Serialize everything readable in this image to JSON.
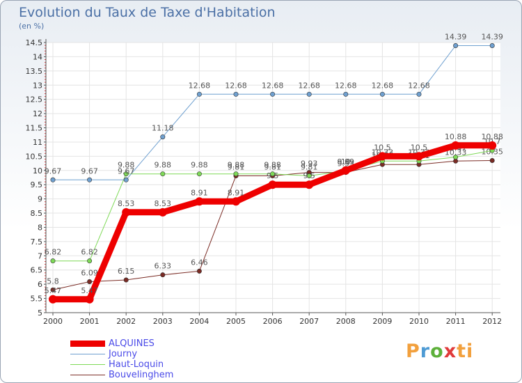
{
  "chart_data": {
    "type": "line",
    "title": "Evolution du Taux de Taxe d'Habitation",
    "subtitle": "(en %)",
    "x": [
      "2000",
      "2001",
      "2002",
      "2003",
      "2004",
      "2005",
      "2006",
      "2007",
      "2008",
      "2009",
      "2010",
      "2011",
      "2012"
    ],
    "ylim": [
      5,
      14.5
    ],
    "yticks": [
      "5",
      "5.5",
      "6",
      "6.5",
      "7",
      "7.5",
      "8",
      "8.5",
      "9",
      "9.5",
      "10",
      "10.5",
      "11",
      "11.5",
      "12",
      "12.5",
      "13",
      "13.5",
      "14",
      "14.5"
    ],
    "series": [
      {
        "name": "Bouvelinghem",
        "color": "#7a2b24",
        "width": 1,
        "values": [
          5.8,
          6.09,
          6.15,
          6.33,
          6.46,
          9.81,
          9.81,
          9.93,
          9.93,
          10.21,
          10.21,
          10.33,
          10.35
        ],
        "labels": [
          "5.8",
          "6.09",
          "6.15",
          "6.33",
          "6.46",
          "9.81",
          "9.81",
          "9.93",
          "9.93",
          "10.21",
          "10.21",
          "10.33",
          "10.35"
        ]
      },
      {
        "name": "Haut-Loquin",
        "color": "#7ed957",
        "width": 1,
        "values": [
          6.82,
          6.82,
          9.88,
          9.88,
          9.88,
          9.88,
          9.88,
          9.81,
          9.99,
          10.33,
          10.33,
          10.47,
          10.7
        ],
        "labels": [
          "6.82",
          "6.82",
          "9.88",
          "9.88",
          "9.88",
          "9.88",
          "9.88",
          "9.81",
          "9.99",
          "10.33",
          "10.33",
          "10.47",
          "10.7"
        ]
      },
      {
        "name": "Journy",
        "color": "#6fa0d0",
        "width": 1,
        "values": [
          9.67,
          9.67,
          9.67,
          11.18,
          12.68,
          12.68,
          12.68,
          12.68,
          12.68,
          12.68,
          12.68,
          14.39,
          14.39
        ],
        "labels": [
          "9.67",
          "9.67",
          "9.67",
          "11.18",
          "12.68",
          "12.68",
          "12.68",
          "12.68",
          "12.68",
          "12.68",
          "12.68",
          "14.39",
          "14.39"
        ]
      },
      {
        "name": "ALQUINES",
        "color": "#ee0000",
        "width": 9,
        "values": [
          5.47,
          5.47,
          8.53,
          8.53,
          8.91,
          8.91,
          9.5,
          9.5,
          10,
          10.5,
          10.5,
          10.88,
          10.88
        ],
        "labels": [
          "5.47",
          "5.47",
          "8.53",
          "8.53",
          "8.91",
          "8.91",
          "9.5",
          "9.5",
          "10",
          "10.5",
          "10.5",
          "10.88",
          "10.88"
        ]
      }
    ],
    "legend": [
      "ALQUINES",
      "Journy",
      "Haut-Loquin",
      "Bouvelinghem"
    ]
  },
  "legend_colors": [
    "#ee0000",
    "#6fa0d0",
    "#7ed957",
    "#7a2b24"
  ],
  "logo": {
    "p": "P",
    "r": "r",
    "o": "o",
    "x": "x",
    "i": "i",
    "t": "ti"
  }
}
